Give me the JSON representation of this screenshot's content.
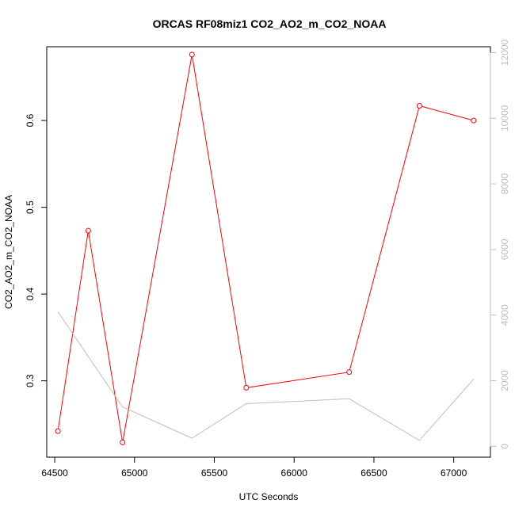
{
  "chart_data": {
    "type": "line",
    "title": "ORCAS RF08miz1 CO2_AO2_m_CO2_NOAA",
    "xlabel": "UTC Seconds",
    "ylabel": "CO2_AO2_m_CO2_NOAA",
    "xlim": [
      64450,
      67230
    ],
    "ylim": [
      0.212,
      0.685
    ],
    "y2lim": [
      -330,
      12180
    ],
    "x_ticks": [
      64500,
      65000,
      65500,
      66000,
      66500,
      67000
    ],
    "y_ticks": [
      0.3,
      0.4,
      0.5,
      0.6
    ],
    "y2_ticks": [
      0,
      2000,
      4000,
      6000,
      8000,
      10000,
      12000
    ],
    "grid": false,
    "series": [
      {
        "axis": "left",
        "color": "#ff0000",
        "markers": "open-circle",
        "x": [
          64520,
          64710,
          64925,
          65360,
          65700,
          66345,
          66785,
          67125
        ],
        "y": [
          0.242,
          0.473,
          0.229,
          0.676,
          0.292,
          0.31,
          0.617,
          0.6
        ]
      },
      {
        "axis": "right",
        "color": "#bebebe",
        "markers": "none",
        "x": [
          64520,
          64925,
          65360,
          65700,
          66345,
          66785,
          67125
        ],
        "y": [
          4100,
          1200,
          250,
          1300,
          1450,
          180,
          2050
        ]
      }
    ]
  }
}
